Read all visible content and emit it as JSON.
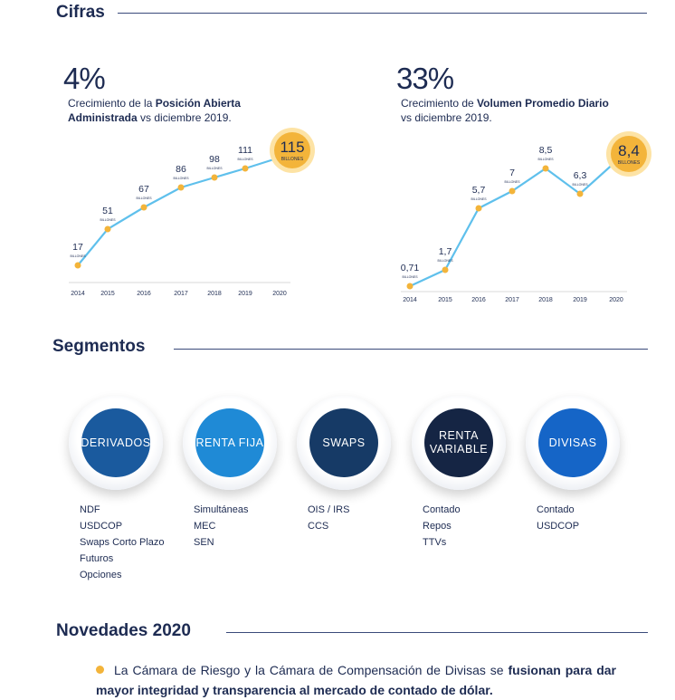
{
  "cifras": {
    "title": "Cifras",
    "left": {
      "pct": "4%",
      "desc_pre": "Crecimiento de la ",
      "desc_bold": "Posición Abierta Administrada",
      "desc_post": " vs diciembre 2019."
    },
    "right": {
      "pct": "33%",
      "desc_pre": "Crecimiento de ",
      "desc_bold": "Volumen Promedio Diario",
      "desc_post": " vs diciembre 2019."
    }
  },
  "chart_data": [
    {
      "type": "line",
      "x": [
        "2014",
        "2015",
        "2016",
        "2017",
        "2018",
        "2019",
        "2020"
      ],
      "values": [
        17,
        51,
        67,
        86,
        98,
        111,
        115
      ],
      "labels": [
        "17",
        "51",
        "67",
        "86",
        "98",
        "111",
        "115"
      ],
      "unit": "BILLONES",
      "highlight_index": 6,
      "colors": {
        "line": "#5fc0ec",
        "point": "#f3b43a",
        "highlight": "#f3b43a"
      }
    },
    {
      "type": "line",
      "x": [
        "2014",
        "2015",
        "2016",
        "2017",
        "2018",
        "2019",
        "2020"
      ],
      "values": [
        0.71,
        1.7,
        5.7,
        7,
        8.5,
        6.3,
        8.4
      ],
      "labels": [
        "0,71",
        "1,7",
        "5,7",
        "7",
        "8,5",
        "6,3",
        "8,4"
      ],
      "unit": "BILLONES",
      "highlight_index": 6,
      "colors": {
        "line": "#5fc0ec",
        "point": "#f3b43a",
        "highlight": "#f3b43a"
      }
    }
  ],
  "segmentos": {
    "title": "Segmentos",
    "items": [
      {
        "label": "DERIVADOS",
        "color": "#1a5a9e",
        "lines": [
          "NDF",
          "USDCOP",
          "Swaps Corto Plazo",
          "Futuros",
          "Opciones"
        ]
      },
      {
        "label": "RENTA FIJA",
        "color": "#1f8ad6",
        "lines": [
          "Simultáneas",
          "MEC",
          "SEN"
        ]
      },
      {
        "label": "SWAPS",
        "color": "#163a66",
        "lines": [
          "OIS / IRS",
          "CCS"
        ]
      },
      {
        "label": "RENTA\nVARIABLE",
        "color": "#152544",
        "lines": [
          "Contado",
          "Repos",
          "TTVs"
        ]
      },
      {
        "label": "DIVISAS",
        "color": "#1565c7",
        "lines": [
          "Contado",
          "USDCOP"
        ]
      }
    ]
  },
  "novedades": {
    "title": "Novedades 2020",
    "text_pre": "La Cámara de Riesgo y la Cámara de Compensación de Divisas se ",
    "text_bold": "fusionan para dar mayor integridad y transparencia al mercado de contado de dólar.",
    "bullet_color": "#f3b43a"
  }
}
